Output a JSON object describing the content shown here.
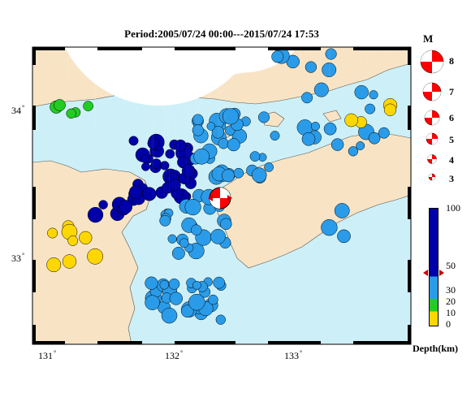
{
  "title": "Period:2005/07/24 00:00---2015/07/24 17:53",
  "axes": {
    "lon_ticks": [
      {
        "value": 131,
        "label": "131"
      },
      {
        "value": 132,
        "label": "132"
      },
      {
        "value": 133,
        "label": "133"
      }
    ],
    "lat_ticks": [
      {
        "value": 34,
        "label": "34"
      },
      {
        "value": 33,
        "label": "33"
      }
    ],
    "degree_symbol": "°"
  },
  "magnitude_legend": {
    "title": "M",
    "levels": [
      {
        "label": "8"
      },
      {
        "label": "7"
      },
      {
        "label": "6"
      },
      {
        "label": "5"
      },
      {
        "label": "4"
      },
      {
        "label": "3"
      }
    ]
  },
  "depth_legend": {
    "unit": "Depth(km)",
    "ticks": [
      "100",
      "50",
      "30",
      "20",
      "10",
      "0"
    ],
    "colors": {
      "deep": "#0000a8",
      "mid": "#2a9be8",
      "shallow_mid": "#22cc22",
      "shallow": "#ffd700"
    }
  },
  "colors": {
    "sea": "#cdf0f8",
    "land": "#f8e4c4",
    "main_event": "#ff0000"
  },
  "main_event": {
    "label": "main shock",
    "depth_marker": "50"
  }
}
